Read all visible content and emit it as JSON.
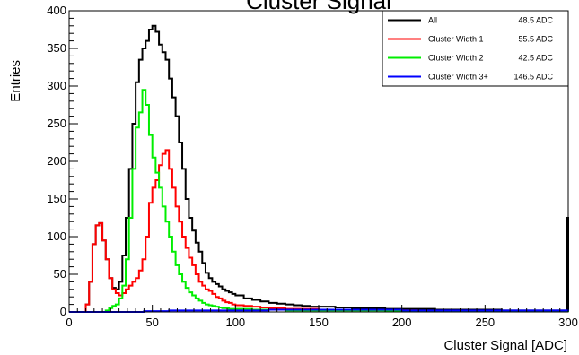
{
  "chart_data": {
    "type": "line",
    "title": "Cluster Signal",
    "xlabel": "Cluster Signal [ADC]",
    "ylabel": "Entries",
    "xlim": [
      0,
      300
    ],
    "ylim": [
      0,
      400
    ],
    "x_ticks": [
      0,
      50,
      100,
      150,
      200,
      250,
      300
    ],
    "y_ticks": [
      0,
      50,
      100,
      150,
      200,
      250,
      300,
      350,
      400
    ],
    "grid": false,
    "legend_position": "top-right",
    "series": [
      {
        "name": "All",
        "legend_value": "48.5 ADC",
        "color": "#000000",
        "points": [
          [
            0,
            0
          ],
          [
            8,
            0
          ],
          [
            10,
            10
          ],
          [
            12,
            40
          ],
          [
            14,
            90
          ],
          [
            16,
            115
          ],
          [
            18,
            118
          ],
          [
            20,
            95
          ],
          [
            22,
            70
          ],
          [
            24,
            45
          ],
          [
            26,
            32
          ],
          [
            28,
            30
          ],
          [
            30,
            40
          ],
          [
            32,
            75
          ],
          [
            34,
            125
          ],
          [
            36,
            190
          ],
          [
            38,
            250
          ],
          [
            40,
            305
          ],
          [
            42,
            335
          ],
          [
            44,
            350
          ],
          [
            46,
            360
          ],
          [
            48,
            375
          ],
          [
            50,
            380
          ],
          [
            52,
            372
          ],
          [
            54,
            355
          ],
          [
            56,
            345
          ],
          [
            58,
            335
          ],
          [
            60,
            310
          ],
          [
            62,
            285
          ],
          [
            64,
            260
          ],
          [
            66,
            225
          ],
          [
            68,
            190
          ],
          [
            70,
            150
          ],
          [
            72,
            125
          ],
          [
            74,
            108
          ],
          [
            76,
            92
          ],
          [
            78,
            80
          ],
          [
            80,
            65
          ],
          [
            82,
            52
          ],
          [
            84,
            45
          ],
          [
            86,
            40
          ],
          [
            88,
            37
          ],
          [
            90,
            34
          ],
          [
            92,
            30
          ],
          [
            94,
            28
          ],
          [
            96,
            26
          ],
          [
            98,
            24
          ],
          [
            100,
            22
          ],
          [
            105,
            18
          ],
          [
            110,
            16
          ],
          [
            115,
            14
          ],
          [
            120,
            12
          ],
          [
            125,
            11
          ],
          [
            130,
            10
          ],
          [
            135,
            9
          ],
          [
            140,
            8
          ],
          [
            145,
            7
          ],
          [
            150,
            7
          ],
          [
            160,
            6
          ],
          [
            170,
            5
          ],
          [
            180,
            5
          ],
          [
            190,
            4
          ],
          [
            200,
            4
          ],
          [
            220,
            3
          ],
          [
            240,
            3
          ],
          [
            260,
            2
          ],
          [
            280,
            2
          ],
          [
            298,
            2
          ],
          [
            299,
            125
          ],
          [
            300,
            0
          ]
        ]
      },
      {
        "name": "Cluster Width 1",
        "legend_value": "55.5 ADC",
        "color": "#ff0000",
        "points": [
          [
            0,
            0
          ],
          [
            8,
            0
          ],
          [
            10,
            10
          ],
          [
            12,
            40
          ],
          [
            14,
            90
          ],
          [
            16,
            115
          ],
          [
            18,
            118
          ],
          [
            20,
            95
          ],
          [
            22,
            70
          ],
          [
            24,
            45
          ],
          [
            26,
            30
          ],
          [
            28,
            25
          ],
          [
            30,
            22
          ],
          [
            32,
            25
          ],
          [
            34,
            30
          ],
          [
            36,
            35
          ],
          [
            38,
            40
          ],
          [
            40,
            45
          ],
          [
            42,
            55
          ],
          [
            44,
            70
          ],
          [
            46,
            100
          ],
          [
            48,
            145
          ],
          [
            50,
            165
          ],
          [
            52,
            175
          ],
          [
            54,
            195
          ],
          [
            56,
            210
          ],
          [
            58,
            215
          ],
          [
            60,
            190
          ],
          [
            62,
            165
          ],
          [
            64,
            140
          ],
          [
            66,
            120
          ],
          [
            68,
            100
          ],
          [
            70,
            85
          ],
          [
            72,
            72
          ],
          [
            74,
            62
          ],
          [
            76,
            50
          ],
          [
            78,
            40
          ],
          [
            80,
            35
          ],
          [
            82,
            30
          ],
          [
            84,
            28
          ],
          [
            86,
            24
          ],
          [
            88,
            20
          ],
          [
            90,
            18
          ],
          [
            92,
            15
          ],
          [
            94,
            13
          ],
          [
            96,
            12
          ],
          [
            98,
            10
          ],
          [
            100,
            9
          ],
          [
            105,
            8
          ],
          [
            110,
            7
          ],
          [
            115,
            6
          ],
          [
            120,
            5
          ],
          [
            130,
            4
          ],
          [
            140,
            4
          ],
          [
            150,
            3
          ],
          [
            170,
            3
          ],
          [
            190,
            2
          ],
          [
            210,
            1
          ],
          [
            240,
            1
          ],
          [
            270,
            1
          ],
          [
            300,
            0
          ]
        ]
      },
      {
        "name": "Cluster Width 2",
        "legend_value": "42.5 ADC",
        "color": "#00ee00",
        "points": [
          [
            0,
            0
          ],
          [
            20,
            0
          ],
          [
            22,
            2
          ],
          [
            24,
            5
          ],
          [
            26,
            8
          ],
          [
            28,
            10
          ],
          [
            30,
            18
          ],
          [
            32,
            35
          ],
          [
            34,
            70
          ],
          [
            36,
            125
          ],
          [
            38,
            190
          ],
          [
            40,
            245
          ],
          [
            42,
            265
          ],
          [
            44,
            295
          ],
          [
            46,
            275
          ],
          [
            48,
            235
          ],
          [
            50,
            205
          ],
          [
            52,
            185
          ],
          [
            54,
            165
          ],
          [
            56,
            140
          ],
          [
            58,
            120
          ],
          [
            60,
            100
          ],
          [
            62,
            80
          ],
          [
            64,
            62
          ],
          [
            66,
            50
          ],
          [
            68,
            40
          ],
          [
            70,
            32
          ],
          [
            72,
            26
          ],
          [
            74,
            22
          ],
          [
            76,
            18
          ],
          [
            78,
            15
          ],
          [
            80,
            12
          ],
          [
            82,
            10
          ],
          [
            84,
            9
          ],
          [
            86,
            8
          ],
          [
            88,
            7
          ],
          [
            90,
            6
          ],
          [
            92,
            5
          ],
          [
            94,
            5
          ],
          [
            96,
            4
          ],
          [
            98,
            4
          ],
          [
            100,
            4
          ],
          [
            110,
            3
          ],
          [
            120,
            3
          ],
          [
            130,
            2
          ],
          [
            150,
            2
          ],
          [
            170,
            2
          ],
          [
            190,
            1
          ],
          [
            210,
            1
          ],
          [
            300,
            0
          ]
        ]
      },
      {
        "name": "Cluster Width 3+",
        "legend_value": "146.5 ADC",
        "color": "#0000ff",
        "points": [
          [
            0,
            0
          ],
          [
            40,
            0
          ],
          [
            45,
            1
          ],
          [
            60,
            2
          ],
          [
            80,
            2
          ],
          [
            100,
            2
          ],
          [
            120,
            3
          ],
          [
            140,
            3
          ],
          [
            160,
            3
          ],
          [
            180,
            3
          ],
          [
            200,
            2
          ],
          [
            220,
            2
          ],
          [
            240,
            2
          ],
          [
            260,
            2
          ],
          [
            280,
            2
          ],
          [
            300,
            1
          ]
        ]
      }
    ]
  }
}
